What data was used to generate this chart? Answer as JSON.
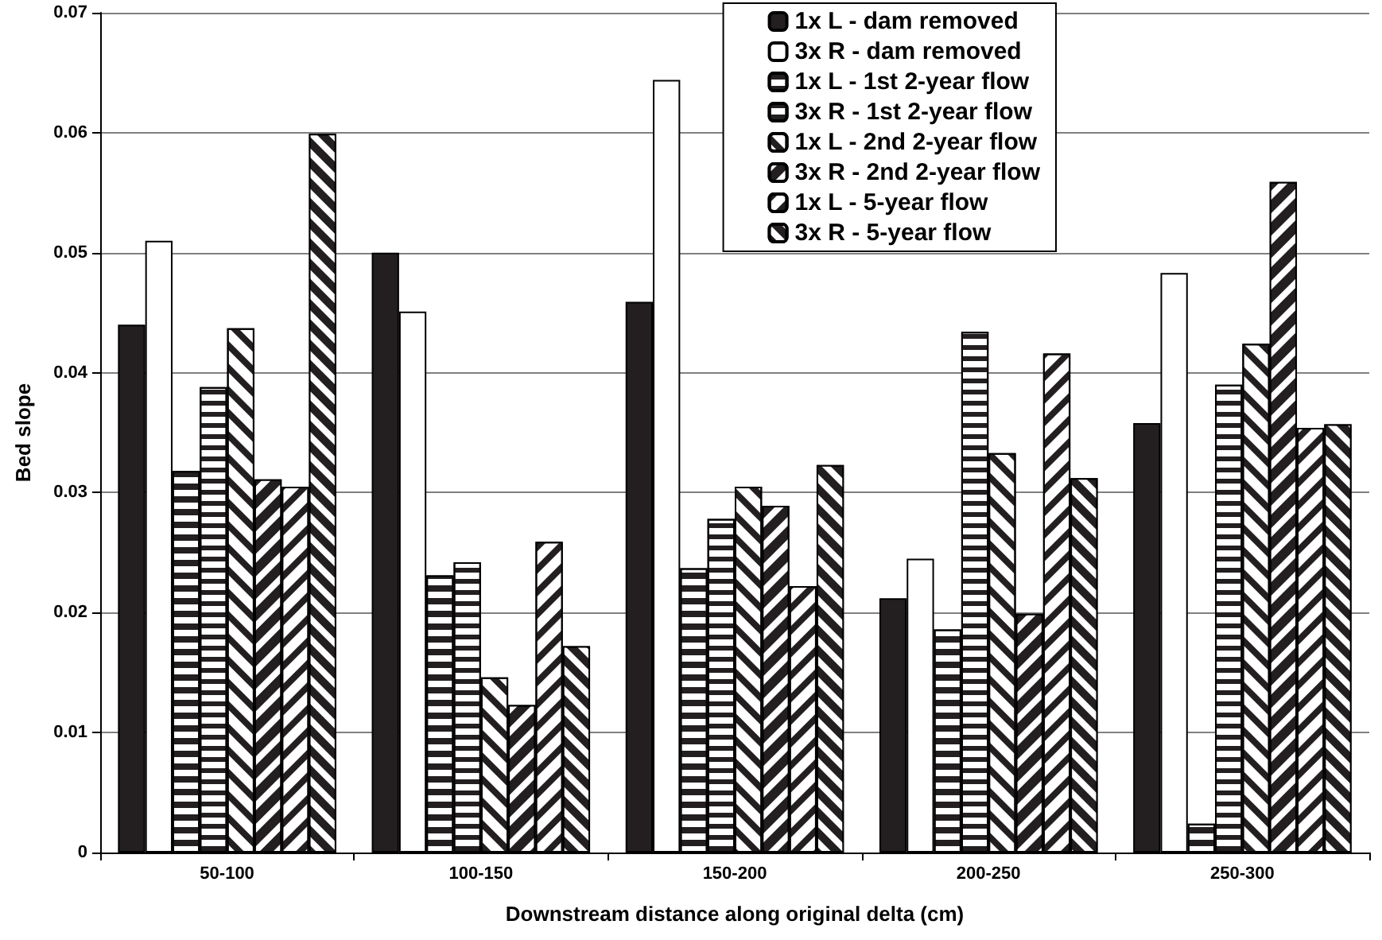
{
  "chart_data": {
    "type": "bar",
    "xlabel": "Downstream distance along original delta (cm)",
    "ylabel": "Bed slope",
    "categories": [
      "50-100",
      "100-150",
      "150-200",
      "200-250",
      "250-300"
    ],
    "series": [
      {
        "name": "1x L - dam removed",
        "color": "#231f20",
        "values": [
          0.044,
          0.05,
          0.0459,
          0.0212,
          0.0358
        ]
      },
      {
        "name": "3x R - dam removed",
        "color": "#ffffff",
        "values": [
          0.051,
          0.0451,
          0.0644,
          0.0245,
          0.0483
        ]
      },
      {
        "name": "1x L - 1st 2-year flow",
        "color": "#ffffff",
        "values": [
          0.0318,
          0.0231,
          0.0237,
          0.0186,
          0.0024
        ]
      },
      {
        "name": "3x R - 1st 2-year flow",
        "color": "#ffffff",
        "values": [
          0.0388,
          0.0242,
          0.0278,
          0.0434,
          0.039
        ]
      },
      {
        "name": "1x L - 2nd 2-year flow",
        "color": "#ffffff",
        "values": [
          0.0437,
          0.0146,
          0.0305,
          0.0333,
          0.0424
        ]
      },
      {
        "name": "3x R - 2nd 2-year flow",
        "color": "#231f20",
        "values": [
          0.0311,
          0.0123,
          0.0289,
          0.0199,
          0.0559
        ]
      },
      {
        "name": "1x L - 5-year flow",
        "color": "#ffffff",
        "values": [
          0.0305,
          0.0259,
          0.0222,
          0.0416,
          0.0354
        ]
      },
      {
        "name": "3x R - 5-year flow",
        "color": "#231f20",
        "values": [
          0.0599,
          0.0172,
          0.0323,
          0.0312,
          0.0357
        ]
      }
    ],
    "ylim": [
      0,
      0.07
    ],
    "yticks": [
      0,
      0.01,
      0.02,
      0.03,
      0.04,
      0.05,
      0.06,
      0.07
    ],
    "grid": "y",
    "legend": "top right"
  }
}
